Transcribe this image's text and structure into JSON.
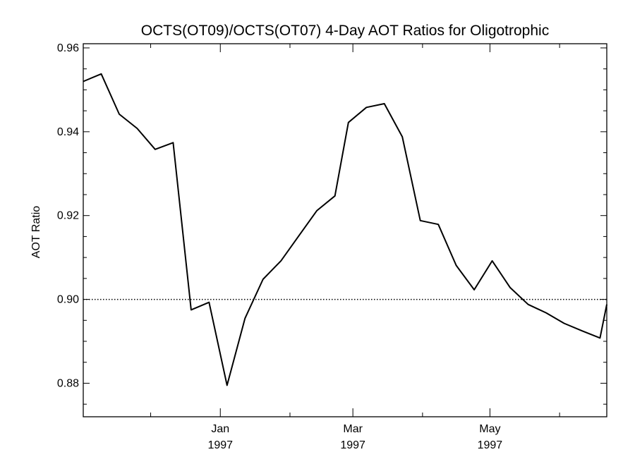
{
  "chart_data": {
    "type": "line",
    "title": "OCTS(OT09)/OCTS(OT07) 4-Day AOT Ratios for Oligotrophic",
    "xlabel": "",
    "ylabel": "AOT Ratio",
    "xlim": [
      "1996-11-01",
      "1997-06-22"
    ],
    "ylim": [
      0.872,
      0.961
    ],
    "y_ticks": [
      0.88,
      0.9,
      0.92,
      0.94,
      0.96
    ],
    "y_tick_labels": [
      "0.88",
      "0.90",
      "0.92",
      "0.94",
      "0.96"
    ],
    "y_minor_step": 0.005,
    "x_ticks": [
      {
        "date": "1997-01-01",
        "month": "Jan",
        "year": "1997"
      },
      {
        "date": "1997-03-01",
        "month": "Mar",
        "year": "1997"
      },
      {
        "date": "1997-05-01",
        "month": "May",
        "year": "1997"
      }
    ],
    "x_minor_ticks": [
      "1996-12-01",
      "1997-02-01",
      "1997-04-01",
      "1997-06-01"
    ],
    "reference_line": {
      "y": 0.9,
      "style": "dotted"
    },
    "grid": false,
    "series": [
      {
        "line_color": "#000000",
        "points": [
          {
            "x": "1996-11-01",
            "y": 0.952
          },
          {
            "x": "1996-11-09",
            "y": 0.9538
          },
          {
            "x": "1996-11-17",
            "y": 0.9442
          },
          {
            "x": "1996-11-25",
            "y": 0.9408
          },
          {
            "x": "1996-12-03",
            "y": 0.9358
          },
          {
            "x": "1996-12-11",
            "y": 0.9374
          },
          {
            "x": "1996-12-19",
            "y": 0.8975
          },
          {
            "x": "1996-12-27",
            "y": 0.8993
          },
          {
            "x": "1997-01-04",
            "y": 0.8795
          },
          {
            "x": "1997-01-12",
            "y": 0.8955
          },
          {
            "x": "1997-01-20",
            "y": 0.9048
          },
          {
            "x": "1997-01-28",
            "y": 0.9092
          },
          {
            "x": "1997-02-05",
            "y": 0.9152
          },
          {
            "x": "1997-02-13",
            "y": 0.9212
          },
          {
            "x": "1997-02-21",
            "y": 0.9247
          },
          {
            "x": "1997-02-27",
            "y": 0.9422
          },
          {
            "x": "1997-03-07",
            "y": 0.9458
          },
          {
            "x": "1997-03-15",
            "y": 0.9467
          },
          {
            "x": "1997-03-23",
            "y": 0.9388
          },
          {
            "x": "1997-03-31",
            "y": 0.9188
          },
          {
            "x": "1997-04-08",
            "y": 0.9179
          },
          {
            "x": "1997-04-16",
            "y": 0.9081
          },
          {
            "x": "1997-04-24",
            "y": 0.9023
          },
          {
            "x": "1997-05-02",
            "y": 0.9092
          },
          {
            "x": "1997-05-10",
            "y": 0.9028
          },
          {
            "x": "1997-05-18",
            "y": 0.8988
          },
          {
            "x": "1997-05-26",
            "y": 0.8968
          },
          {
            "x": "1997-06-03",
            "y": 0.8943
          },
          {
            "x": "1997-06-11",
            "y": 0.8925
          },
          {
            "x": "1997-06-19",
            "y": 0.8908
          },
          {
            "x": "1997-06-22",
            "y": 0.8988
          }
        ]
      }
    ]
  }
}
